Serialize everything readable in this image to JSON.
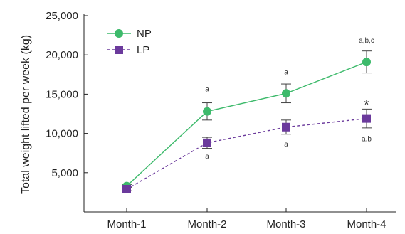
{
  "chart_data": {
    "type": "line",
    "title": "",
    "xlabel": "",
    "ylabel": "Total weight lifted per week (kg)",
    "categories": [
      "Month-1",
      "Month-2",
      "Month-3",
      "Month-4"
    ],
    "ylim": [
      0,
      25000
    ],
    "yticks": [
      5000,
      10000,
      15000,
      20000,
      25000
    ],
    "ytick_labels": [
      "5,000",
      "10,000",
      "15,000",
      "20,000",
      "25,000"
    ],
    "grid": false,
    "legend": "top-left",
    "series": [
      {
        "name": "NP",
        "values": [
          3300,
          12800,
          15100,
          19100
        ],
        "errors": [
          200,
          1100,
          1200,
          1400
        ],
        "color": "#3dba6b",
        "marker": "circle",
        "line": "solid",
        "annotations": [
          "",
          "a",
          "a",
          "a,b,c"
        ]
      },
      {
        "name": "LP",
        "values": [
          2900,
          8800,
          10800,
          11900
        ],
        "errors": [
          200,
          700,
          900,
          1200
        ],
        "color": "#6b3a9c",
        "marker": "square",
        "line": "dashed",
        "annotations": [
          "",
          "a",
          "a",
          "a,b"
        ]
      }
    ],
    "extra_marks": [
      {
        "category": "Month-4",
        "value": 14000,
        "text": "*"
      }
    ]
  }
}
